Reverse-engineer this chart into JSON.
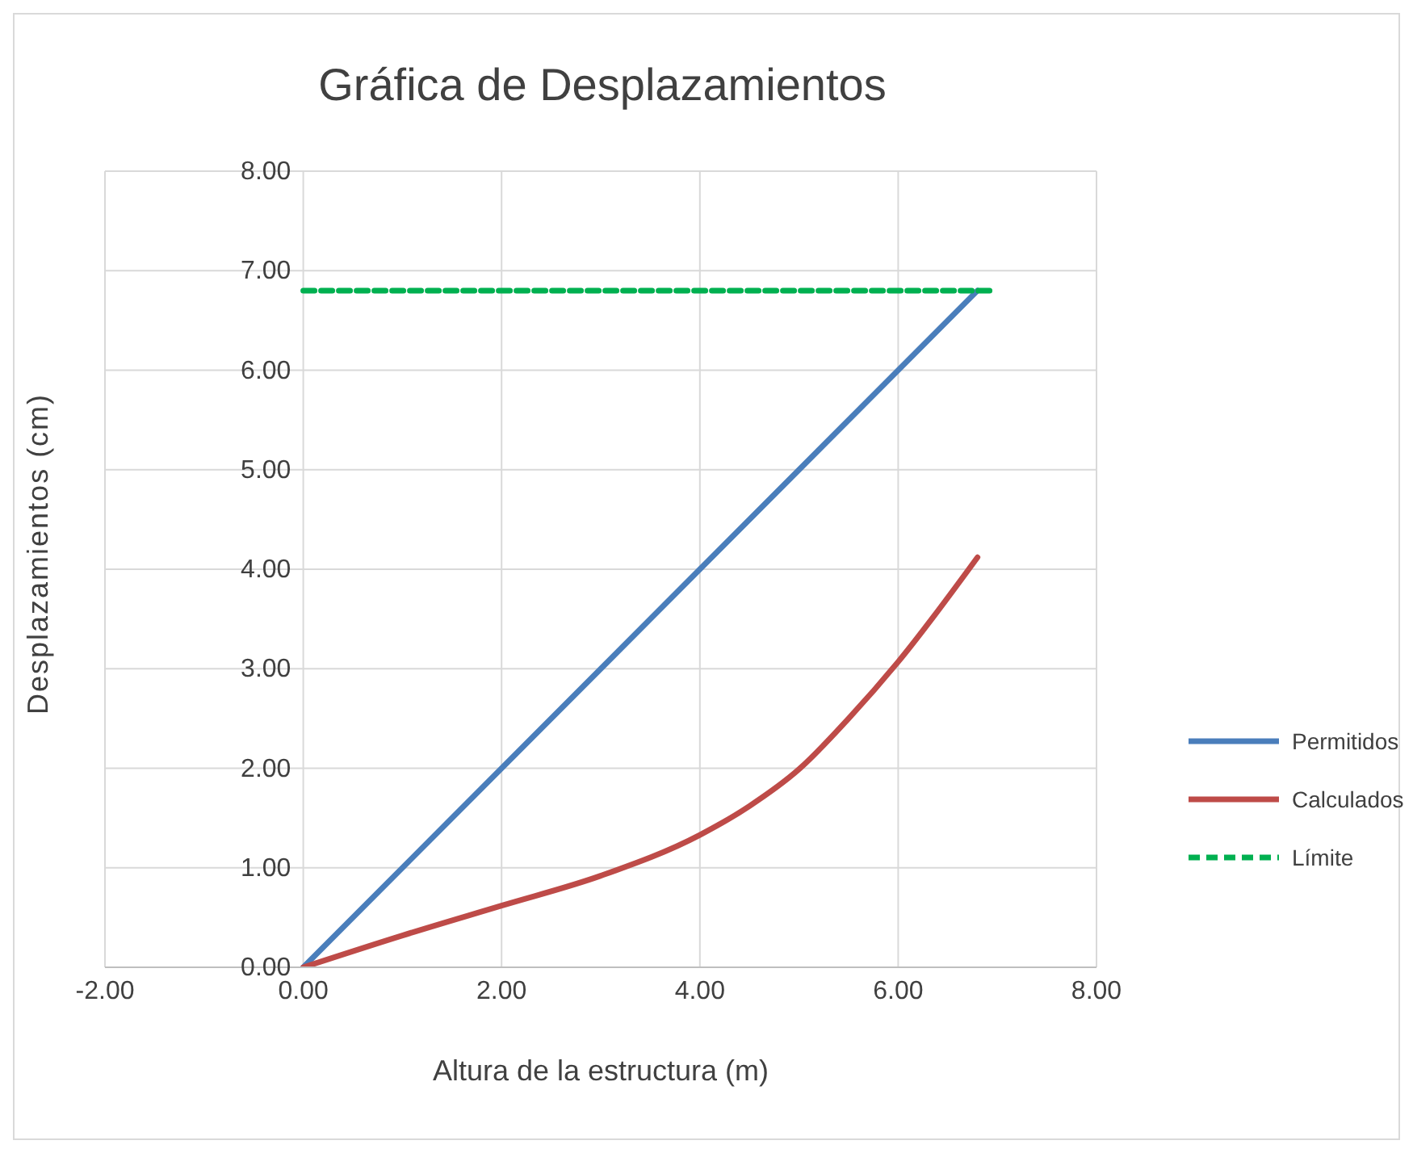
{
  "chart_data": {
    "type": "line",
    "title": "Gráfica de Desplazamientos",
    "xlabel": "Altura de la estructura (m)",
    "ylabel": "Desplazamientos (cm)",
    "xlim": [
      -2,
      8
    ],
    "xticks": [
      {
        "value": -2,
        "label": "-2.00"
      },
      {
        "value": 0,
        "label": "0.00"
      },
      {
        "value": 2,
        "label": "2.00"
      },
      {
        "value": 4,
        "label": "4.00"
      },
      {
        "value": 6,
        "label": "6.00"
      },
      {
        "value": 8,
        "label": "8.00"
      }
    ],
    "ylim": [
      0,
      8
    ],
    "yticks": [
      {
        "value": 0,
        "label": "0.00"
      },
      {
        "value": 1,
        "label": "1.00"
      },
      {
        "value": 2,
        "label": "2.00"
      },
      {
        "value": 3,
        "label": "3.00"
      },
      {
        "value": 4,
        "label": "4.00"
      },
      {
        "value": 5,
        "label": "5.00"
      },
      {
        "value": 6,
        "label": "6.00"
      },
      {
        "value": 7,
        "label": "7.00"
      },
      {
        "value": 8,
        "label": "8.00"
      }
    ],
    "grid": true,
    "legend": "right",
    "series": [
      {
        "name": "Permitidos",
        "color": "#4a7ebb",
        "x": [
          0,
          6.8
        ],
        "values": [
          0,
          6.8
        ]
      },
      {
        "name": "Calculados",
        "color": "#be4b48",
        "x": [
          0,
          1,
          2,
          3,
          4,
          4.5,
          5,
          5.5,
          6,
          6.8
        ],
        "values": [
          0,
          0.32,
          0.62,
          0.92,
          1.33,
          1.62,
          1.99,
          2.5,
          3.07,
          4.12
        ]
      },
      {
        "name": "Límite",
        "color": "#00b050",
        "line_style": "dashed",
        "x": [
          0,
          6.95
        ],
        "values": [
          6.8,
          6.8
        ]
      }
    ]
  }
}
